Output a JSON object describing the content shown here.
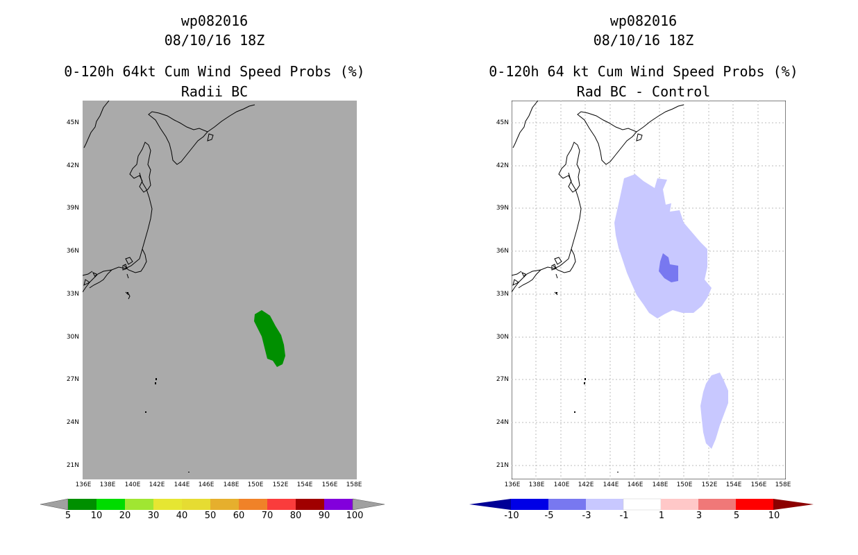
{
  "left": {
    "title1": "wp082016",
    "title2": "08/10/16 18Z",
    "title3": "0-120h 64kt Cum Wind Speed Probs (%)",
    "title4": "Radii BC",
    "map_bg": "#aaaaaa",
    "shade_color": "#008f00",
    "colorbar": {
      "colors": [
        "#008f00",
        "#00dc00",
        "#a0e632",
        "#e6e632",
        "#e6dc32",
        "#e6af2d",
        "#f08228",
        "#fa3c3c",
        "#a00000",
        "#8200dc"
      ],
      "labels": [
        "5",
        "10",
        "20",
        "30",
        "40",
        "50",
        "60",
        "70",
        "80",
        "90",
        "100"
      ],
      "end_color": "#a0a0a0"
    }
  },
  "right": {
    "title1": "wp082016",
    "title2": "08/10/16 18Z",
    "title3": "0-120h 64 kt Cum Wind Speed Probs (%)",
    "title4": "Rad BC - Control",
    "map_bg": "#ffffff",
    "light_color": "#c8c8ff",
    "dark_color": "#7878f0",
    "colorbar": {
      "colors": [
        "#0000e6",
        "#7878f0",
        "#c8c8ff",
        "#ffffff",
        "#ffc8c8",
        "#f07878",
        "#ff0000"
      ],
      "labels": [
        "-10",
        "-5",
        "-3",
        "-1",
        "1",
        "3",
        "5",
        "10"
      ],
      "left_end_color": "#000096",
      "right_end_color": "#8c0000"
    }
  },
  "axes": {
    "lat_labels": [
      "45N",
      "42N",
      "39N",
      "36N",
      "33N",
      "30N",
      "27N",
      "24N",
      "21N"
    ],
    "lon_labels": [
      "136E",
      "138E",
      "140E",
      "142E",
      "144E",
      "146E",
      "148E",
      "150E",
      "152E",
      "154E",
      "156E",
      "158E"
    ]
  }
}
